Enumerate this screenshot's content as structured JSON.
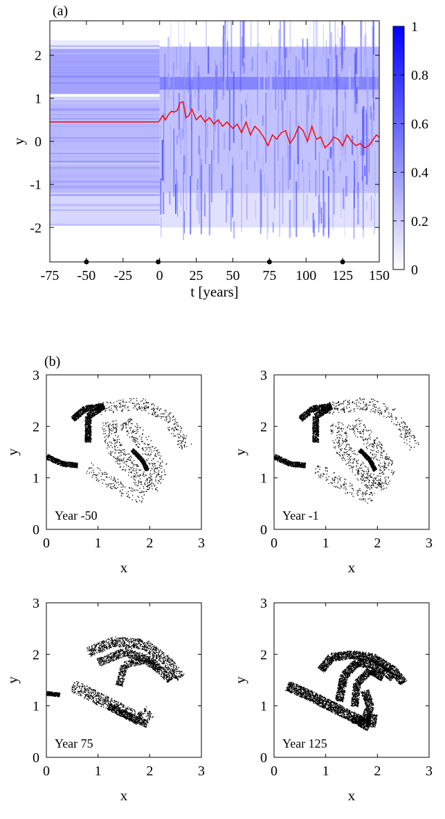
{
  "figure": {
    "panel_a_label": "(a)",
    "panel_b_label": "(b)"
  },
  "chart_data": [
    {
      "type": "heatmap",
      "panel": "(a)",
      "xlabel": "t [years]",
      "ylabel": "y",
      "xlim": [
        -75,
        150
      ],
      "ylim": [
        -2.8,
        2.8
      ],
      "x_ticks": [
        -75,
        -50,
        -25,
        0,
        25,
        50,
        75,
        100,
        125,
        150
      ],
      "y_ticks": [
        -2,
        -1,
        0,
        1,
        2
      ],
      "colorbar": {
        "range": [
          0,
          1
        ],
        "ticks": [
          0,
          0.2,
          0.4,
          0.6,
          0.8,
          1
        ],
        "tick_labels": [
          "0",
          "0.2",
          "0.4",
          "0.6",
          "0.8",
          "1"
        ],
        "color_low": "#ffffff",
        "color_high": "#0000ff"
      },
      "snapshot_markers_t": [
        -50,
        -1,
        75,
        125
      ],
      "line_series": {
        "color": "#ff0000",
        "x": [
          -75,
          -1,
          0,
          2,
          4,
          6,
          8,
          10,
          12,
          14,
          16,
          18,
          20,
          22,
          25,
          28,
          31,
          34,
          37,
          40,
          43,
          46,
          50,
          53,
          56,
          59,
          62,
          65,
          68,
          71,
          74,
          77,
          80,
          83,
          86,
          89,
          92,
          95,
          98,
          101,
          104,
          107,
          110,
          113,
          116,
          119,
          122,
          125,
          128,
          131,
          134,
          137,
          140,
          143,
          146,
          148,
          150
        ],
        "y": [
          0.45,
          0.45,
          0.48,
          0.6,
          0.5,
          0.62,
          0.7,
          0.68,
          0.72,
          0.9,
          0.92,
          0.55,
          0.6,
          0.75,
          0.5,
          0.6,
          0.45,
          0.55,
          0.4,
          0.5,
          0.35,
          0.45,
          0.3,
          0.4,
          0.2,
          0.45,
          0.15,
          0.35,
          0.25,
          0.1,
          -0.1,
          0.15,
          0.05,
          0.2,
          0.25,
          -0.05,
          0.1,
          0.35,
          0.25,
          0.0,
          0.35,
          0.05,
          0.1,
          -0.15,
          -0.05,
          0.1,
          0.05,
          -0.1,
          0.15,
          0.0,
          -0.1,
          -0.05,
          -0.15,
          -0.1,
          0.05,
          0.15,
          0.1
        ]
      },
      "density_bands": [
        {
          "t_range": [
            -75,
            0
          ],
          "y_range": [
            1.1,
            2.15
          ],
          "level": 0.45
        },
        {
          "t_range": [
            -75,
            0
          ],
          "y_range": [
            -1.15,
            0.95
          ],
          "level": 0.35
        },
        {
          "t_range": [
            -75,
            0
          ],
          "y_range": [
            -1.95,
            -1.15
          ],
          "level": 0.2
        },
        {
          "t_range": [
            -75,
            0
          ],
          "y_range": [
            2.15,
            2.35
          ],
          "level": 0.1
        },
        {
          "t_range": [
            0,
            150
          ],
          "y_range": [
            1.2,
            1.5
          ],
          "level": 0.6
        },
        {
          "t_range": [
            0,
            150
          ],
          "y_range": [
            1.5,
            2.2
          ],
          "level": 0.35
        },
        {
          "t_range": [
            0,
            150
          ],
          "y_range": [
            -1.2,
            1.2
          ],
          "level": 0.3
        },
        {
          "t_range": [
            0,
            150
          ],
          "y_range": [
            -2.0,
            -1.2
          ],
          "level": 0.15
        }
      ]
    },
    {
      "type": "scatter",
      "panel": "(b)",
      "annotation": "Year -50",
      "xlabel": "x",
      "ylabel": "y",
      "xlim": [
        0,
        3
      ],
      "ylim": [
        0,
        3
      ],
      "x_ticks": [
        0,
        1,
        2,
        3
      ],
      "y_ticks": [
        0,
        1,
        2,
        3
      ],
      "point_color": "#000000",
      "structures": [
        {
          "kind": "arc",
          "points": [
            [
              0.5,
              2.15
            ],
            [
              0.75,
              2.35
            ],
            [
              1.1,
              2.4
            ],
            [
              0.8,
              2.2
            ],
            [
              0.8,
              1.7
            ]
          ],
          "thickness": 0.06,
          "density": 1.0
        },
        {
          "kind": "arc",
          "points": [
            [
              0.0,
              1.42
            ],
            [
              0.3,
              1.28
            ],
            [
              0.6,
              1.25
            ]
          ],
          "thickness": 0.05,
          "density": 1.0
        },
        {
          "kind": "arc",
          "points": [
            [
              1.65,
              1.55
            ],
            [
              1.85,
              1.35
            ],
            [
              1.95,
              1.15
            ]
          ],
          "thickness": 0.04,
          "density": 1.0
        },
        {
          "kind": "arc",
          "points": [
            [
              1.0,
              2.35
            ],
            [
              1.8,
              2.45
            ],
            [
              2.3,
              2.25
            ],
            [
              2.7,
              1.6
            ]
          ],
          "thickness": 0.12,
          "density": 0.15
        },
        {
          "kind": "arc",
          "points": [
            [
              1.2,
              2.1
            ],
            [
              1.3,
              1.6
            ],
            [
              1.7,
              1.1
            ],
            [
              2.0,
              0.8
            ],
            [
              2.2,
              1.2
            ],
            [
              1.8,
              1.8
            ],
            [
              1.5,
              2.1
            ]
          ],
          "thickness": 0.15,
          "density": 0.2
        },
        {
          "kind": "arc",
          "points": [
            [
              0.8,
              1.2
            ],
            [
              1.2,
              0.95
            ],
            [
              1.6,
              0.7
            ],
            [
              1.9,
              0.6
            ]
          ],
          "thickness": 0.12,
          "density": 0.12
        }
      ]
    },
    {
      "type": "scatter",
      "panel": "(b)",
      "annotation": "Year -1",
      "xlabel": "x",
      "ylabel": "y",
      "xlim": [
        0,
        3
      ],
      "ylim": [
        0,
        3
      ],
      "x_ticks": [
        0,
        1,
        2,
        3
      ],
      "y_ticks": [
        0,
        1,
        2,
        3
      ],
      "point_color": "#000000",
      "structures": [
        {
          "kind": "arc",
          "points": [
            [
              0.5,
              2.15
            ],
            [
              0.75,
              2.35
            ],
            [
              1.1,
              2.4
            ],
            [
              0.8,
              2.2
            ],
            [
              0.8,
              1.7
            ]
          ],
          "thickness": 0.06,
          "density": 1.0
        },
        {
          "kind": "arc",
          "points": [
            [
              0.0,
              1.42
            ],
            [
              0.3,
              1.28
            ],
            [
              0.6,
              1.25
            ]
          ],
          "thickness": 0.05,
          "density": 1.0
        },
        {
          "kind": "arc",
          "points": [
            [
              1.65,
              1.55
            ],
            [
              1.85,
              1.35
            ],
            [
              1.95,
              1.15
            ]
          ],
          "thickness": 0.04,
          "density": 1.0
        },
        {
          "kind": "arc",
          "points": [
            [
              1.0,
              2.35
            ],
            [
              1.8,
              2.45
            ],
            [
              2.3,
              2.25
            ],
            [
              2.7,
              1.6
            ]
          ],
          "thickness": 0.12,
          "density": 0.15
        },
        {
          "kind": "arc",
          "points": [
            [
              1.2,
              2.1
            ],
            [
              1.3,
              1.6
            ],
            [
              1.7,
              1.1
            ],
            [
              2.0,
              0.8
            ],
            [
              2.2,
              1.2
            ],
            [
              1.8,
              1.8
            ],
            [
              1.5,
              2.1
            ]
          ],
          "thickness": 0.15,
          "density": 0.2
        },
        {
          "kind": "arc",
          "points": [
            [
              0.8,
              1.2
            ],
            [
              1.2,
              0.95
            ],
            [
              1.6,
              0.7
            ],
            [
              1.9,
              0.6
            ]
          ],
          "thickness": 0.12,
          "density": 0.12
        }
      ]
    },
    {
      "type": "scatter",
      "panel": "(b)",
      "annotation": "Year 75",
      "xlabel": "x",
      "ylabel": "y",
      "xlim": [
        0,
        3
      ],
      "ylim": [
        0,
        3
      ],
      "x_ticks": [
        0,
        1,
        2,
        3
      ],
      "y_ticks": [
        0,
        1,
        2,
        3
      ],
      "point_color": "#000000",
      "structures": [
        {
          "kind": "arc",
          "points": [
            [
              0.8,
              2.05
            ],
            [
              1.3,
              2.25
            ],
            [
              1.9,
              2.2
            ],
            [
              2.3,
              1.9
            ],
            [
              2.6,
              1.55
            ]
          ],
          "thickness": 0.1,
          "density": 0.5
        },
        {
          "kind": "arc",
          "points": [
            [
              1.0,
              1.85
            ],
            [
              1.5,
              2.05
            ],
            [
              2.0,
              1.9
            ],
            [
              2.4,
              1.5
            ]
          ],
          "thickness": 0.08,
          "density": 0.55
        },
        {
          "kind": "arc",
          "points": [
            [
              1.4,
              1.4
            ],
            [
              1.5,
              1.8
            ],
            [
              1.9,
              1.9
            ],
            [
              2.2,
              1.7
            ]
          ],
          "thickness": 0.07,
          "density": 0.5
        },
        {
          "kind": "arc",
          "points": [
            [
              0.5,
              1.4
            ],
            [
              1.0,
              1.15
            ],
            [
              1.4,
              0.95
            ],
            [
              1.8,
              0.75
            ],
            [
              2.0,
              0.9
            ]
          ],
          "thickness": 0.12,
          "density": 0.45
        },
        {
          "kind": "arc",
          "points": [
            [
              1.2,
              1.0
            ],
            [
              1.6,
              0.8
            ],
            [
              1.95,
              0.65
            ]
          ],
          "thickness": 0.07,
          "density": 0.7
        },
        {
          "kind": "arc",
          "points": [
            [
              0.0,
              1.25
            ],
            [
              0.25,
              1.22
            ]
          ],
          "thickness": 0.04,
          "density": 1.0
        }
      ]
    },
    {
      "type": "scatter",
      "panel": "(b)",
      "annotation": "Year 125",
      "xlabel": "x",
      "ylabel": "y",
      "xlim": [
        0,
        3
      ],
      "ylim": [
        0,
        3
      ],
      "x_ticks": [
        0,
        1,
        2,
        3
      ],
      "y_ticks": [
        0,
        1,
        2,
        3
      ],
      "point_color": "#000000",
      "structures": [
        {
          "kind": "arc",
          "points": [
            [
              0.25,
              1.4
            ],
            [
              0.7,
              1.2
            ],
            [
              1.2,
              0.95
            ],
            [
              1.6,
              0.75
            ],
            [
              1.85,
              0.6
            ],
            [
              1.9,
              0.85
            ]
          ],
          "thickness": 0.1,
          "density": 1.0
        },
        {
          "kind": "arc",
          "points": [
            [
              0.9,
              1.7
            ],
            [
              1.1,
              1.95
            ],
            [
              1.5,
              2.0
            ],
            [
              1.9,
              1.95
            ],
            [
              2.3,
              1.7
            ],
            [
              2.5,
              1.45
            ]
          ],
          "thickness": 0.08,
          "density": 0.9
        },
        {
          "kind": "arc",
          "points": [
            [
              1.25,
              1.1
            ],
            [
              1.35,
              1.6
            ],
            [
              1.6,
              1.85
            ],
            [
              2.0,
              1.8
            ],
            [
              2.3,
              1.55
            ]
          ],
          "thickness": 0.08,
          "density": 0.9
        },
        {
          "kind": "arc",
          "points": [
            [
              1.55,
              1.0
            ],
            [
              1.6,
              1.45
            ],
            [
              1.85,
              1.7
            ],
            [
              2.1,
              1.55
            ]
          ],
          "thickness": 0.07,
          "density": 0.9
        },
        {
          "kind": "arc",
          "points": [
            [
              1.5,
              0.75
            ],
            [
              1.75,
              0.7
            ],
            [
              1.85,
              1.0
            ],
            [
              1.75,
              1.3
            ]
          ],
          "thickness": 0.08,
          "density": 1.0
        }
      ]
    }
  ]
}
